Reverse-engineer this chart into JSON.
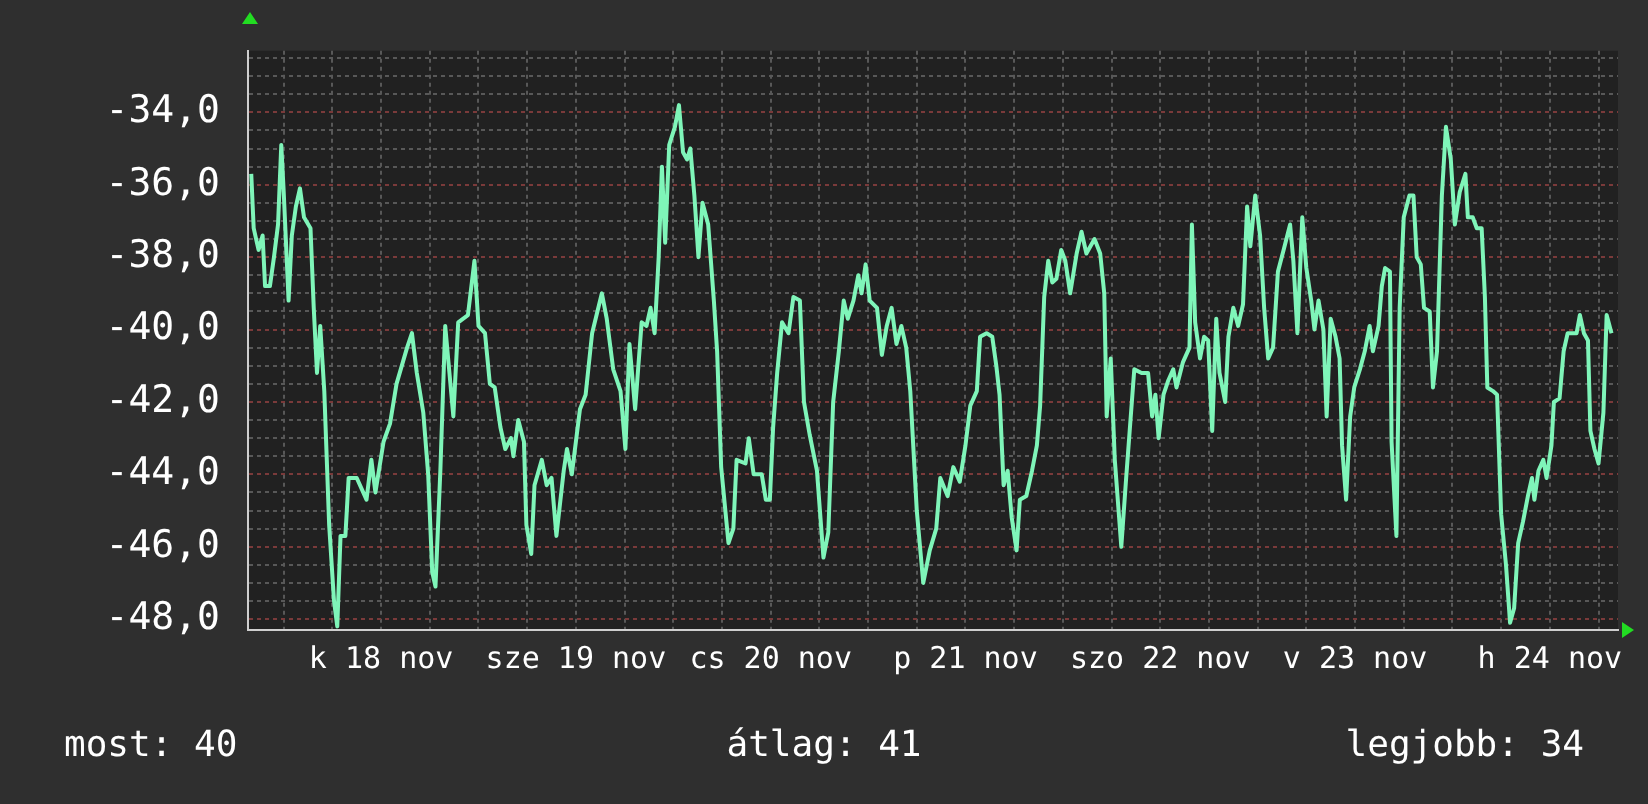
{
  "chart_data": {
    "type": "line",
    "x": [
      "--11-17T20:00",
      "--11-17T20:18",
      "--11-17T20:54",
      "--11-17T21:24",
      "--11-17T21:42",
      "--11-17T22:18",
      "--11-17T22:48",
      "--11-17T23:18",
      "--11-17T23:42",
      "--11-18T00:00",
      "--11-18T00:36",
      "--11-18T01:00",
      "--11-18T01:30",
      "--11-18T02:00",
      "--11-18T02:30",
      "--11-18T03:18",
      "--11-18T03:42",
      "--11-18T04:06",
      "--11-18T04:30",
      "--11-18T05:00",
      "--11-18T05:36",
      "--11-18T06:12",
      "--11-18T06:36",
      "--11-18T07:00",
      "--11-18T07:36",
      "--11-18T08:00",
      "--11-18T09:00",
      "--11-18T10:12",
      "--11-18T10:48",
      "--11-18T11:18",
      "--11-18T12:18",
      "--11-18T13:06",
      "--11-18T13:54",
      "--11-18T15:12",
      "--11-18T15:48",
      "--11-18T16:24",
      "--11-18T17:12",
      "--11-18T17:48",
      "--11-18T18:18",
      "--11-18T18:42",
      "--11-18T19:18",
      "--11-18T19:54",
      "--11-18T20:18",
      "--11-18T20:54",
      "--11-18T21:30",
      "--11-18T22:42",
      "--11-18T23:30",
      "--11-19T00:00",
      "--11-19T00:48",
      "--11-19T01:24",
      "--11-19T02:00",
      "--11-19T02:42",
      "--11-19T03:18",
      "--11-19T04:00",
      "--11-19T04:18",
      "--11-19T04:54",
      "--11-19T05:36",
      "--11-19T05:54",
      "--11-19T06:30",
      "--11-19T06:54",
      "--11-19T07:48",
      "--11-19T08:24",
      "--11-19T09:00",
      "--11-19T09:36",
      "--11-19T10:30",
      "--11-19T10:54",
      "--11-19T11:30",
      "--11-19T12:30",
      "--11-19T13:12",
      "--11-19T14:00",
      "--11-19T15:12",
      "--11-19T15:48",
      "--11-19T16:36",
      "--11-19T17:30",
      "--11-19T18:06",
      "--11-19T18:36",
      "--11-19T19:18",
      "--11-19T20:06",
      "--11-19T20:42",
      "--11-19T21:12",
      "--11-19T21:42",
      "--11-19T22:12",
      "--11-19T22:36",
      "--11-19T23:00",
      "--11-19T23:30",
      "--11-20T00:12",
      "--11-20T00:42",
      "--11-20T01:12",
      "--11-20T01:42",
      "--11-20T02:06",
      "--11-20T02:36",
      "--11-20T03:06",
      "--11-20T03:36",
      "--11-20T04:18",
      "--11-20T05:00",
      "--11-20T05:24",
      "--11-20T05:54",
      "--11-20T06:48",
      "--11-20T07:24",
      "--11-20T07:48",
      "--11-20T08:54",
      "--11-20T09:18",
      "--11-20T09:54",
      "--11-20T10:54",
      "--11-20T11:24",
      "--11-20T11:54",
      "--11-20T12:18",
      "--11-20T12:48",
      "--11-20T13:24",
      "--11-20T14:12",
      "--11-20T14:48",
      "--11-20T15:36",
      "--11-20T16:06",
      "--11-20T16:48",
      "--11-20T17:42",
      "--11-20T18:30",
      "--11-20T19:06",
      "--11-20T19:42",
      "--11-20T20:24",
      "--11-20T21:00",
      "--11-20T21:30",
      "--11-20T22:12",
      "--11-20T22:48",
      "--11-20T23:12",
      "--11-20T23:42",
      "--11-21T00:12",
      "--11-21T01:06",
      "--11-21T01:42",
      "--11-21T02:18",
      "--11-21T02:54",
      "--11-21T03:30",
      "--11-21T04:06",
      "--11-21T04:42",
      "--11-21T05:12",
      "--11-21T06:00",
      "--11-21T06:48",
      "--11-21T07:36",
      "--11-21T08:24",
      "--11-21T08:54",
      "--11-21T09:48",
      "--11-21T10:30",
      "--11-21T11:18",
      "--11-21T12:00",
      "--11-21T12:36",
      "--11-21T13:24",
      "--11-21T13:48",
      "--11-21T14:36",
      "--11-21T15:18",
      "--11-21T15:48",
      "--11-21T16:12",
      "--11-21T16:42",
      "--11-21T17:12",
      "--11-21T17:42",
      "--11-21T18:18",
      "--11-21T18:42",
      "--11-21T19:30",
      "--11-21T20:12",
      "--11-21T20:48",
      "--11-21T21:12",
      "--11-21T21:42",
      "--11-21T22:12",
      "--11-21T22:42",
      "--11-21T23:12",
      "--11-21T23:48",
      "--11-22T00:18",
      "--11-22T00:54",
      "--11-22T01:42",
      "--11-22T02:18",
      "--11-22T02:54",
      "--11-22T03:54",
      "--11-22T04:36",
      "--11-22T05:06",
      "--11-22T05:24",
      "--11-22T05:54",
      "--11-22T06:24",
      "--11-22T07:12",
      "--11-22T07:48",
      "--11-22T08:18",
      "--11-22T08:48",
      "--11-22T09:42",
      "--11-22T10:30",
      "--11-22T11:00",
      "--11-22T11:24",
      "--11-22T11:48",
      "--11-22T12:24",
      "--11-22T13:00",
      "--11-22T13:36",
      "--11-22T14:00",
      "--11-22T14:48",
      "--11-22T15:36",
      "--11-22T15:54",
      "--11-22T16:18",
      "--11-22T16:54",
      "--11-22T17:24",
      "--11-22T17:54",
      "--11-22T18:24",
      "--11-22T18:54",
      "--11-22T19:18",
      "--11-22T20:00",
      "--11-22T20:24",
      "--11-22T21:00",
      "--11-22T21:36",
      "--11-22T22:12",
      "--11-22T22:42",
      "--11-22T23:06",
      "--11-22T23:42",
      "--11-23T00:18",
      "--11-23T00:48",
      "--11-23T01:18",
      "--11-23T01:54",
      "--11-23T02:30",
      "--11-23T03:12",
      "--11-23T04:00",
      "--11-23T04:24",
      "--11-23T04:54",
      "--11-23T05:30",
      "--11-23T06:00",
      "--11-23T06:36",
      "--11-23T07:00",
      "--11-23T07:30",
      "--11-23T08:06",
      "--11-23T08:30",
      "--11-23T09:00",
      "--11-23T09:36",
      "--11-23T10:06",
      "--11-23T10:24",
      "--11-23T10:54",
      "--11-23T11:24",
      "--11-23T11:54",
      "--11-23T12:36",
      "--11-23T13:12",
      "--11-23T13:48",
      "--11-23T14:12",
      "--11-23T14:54",
      "--11-23T15:18",
      "--11-23T15:42",
      "--11-23T16:18",
      "--11-23T16:30",
      "--11-23T17:06",
      "--11-23T17:30",
      "--11-23T18:00",
      "--11-23T18:42",
      "--11-23T19:12",
      "--11-23T19:36",
      "--11-23T20:06",
      "--11-23T20:30",
      "--11-23T21:12",
      "--11-23T21:36",
      "--11-23T22:06",
      "--11-23T22:42",
      "--11-23T23:12",
      "--11-23T23:48",
      "--11-24T00:18",
      "--11-24T00:54",
      "--11-24T01:36",
      "--11-24T01:54",
      "--11-24T02:30",
      "--11-24T03:00",
      "--11-24T03:36",
      "--11-24T04:00",
      "--11-24T04:18",
      "--11-24T05:00",
      "--11-24T05:30",
      "--11-24T06:00",
      "--11-24T06:36",
      "--11-24T07:06",
      "--11-24T07:36",
      "--11-24T08:06",
      "--11-24T08:42",
      "--11-24T09:18",
      "--11-24T09:48",
      "--11-24T10:06",
      "--11-24T10:36",
      "--11-24T11:12",
      "--11-24T11:36",
      "--11-24T12:12",
      "--11-24T12:30",
      "--11-24T13:12",
      "--11-24T13:42",
      "--11-24T14:12",
      "--11-24T15:18",
      "--11-24T15:42",
      "--11-24T16:12",
      "--11-24T16:42",
      "--11-24T17:00",
      "--11-24T17:30",
      "--11-24T18:00",
      "--11-24T18:36",
      "--11-24T19:00",
      "--11-24T19:36"
    ],
    "series": [
      {
        "color": "#7ff5b9",
        "values": [
          -35.7,
          -37.2,
          -37.8,
          -37.4,
          -38.8,
          -38.8,
          -38.0,
          -37.1,
          -34.9,
          -36.2,
          -39.2,
          -37.4,
          -36.6,
          -36.1,
          -36.9,
          -37.2,
          -39.4,
          -41.2,
          -39.9,
          -41.7,
          -45.4,
          -47.5,
          -48.2,
          -45.7,
          -45.7,
          -44.1,
          -44.1,
          -44.7,
          -43.6,
          -44.5,
          -43.1,
          -42.6,
          -41.5,
          -40.5,
          -40.1,
          -41.2,
          -42.3,
          -44.0,
          -46.7,
          -47.1,
          -43.9,
          -39.9,
          -40.9,
          -42.4,
          -39.8,
          -39.6,
          -38.1,
          -39.9,
          -40.1,
          -41.5,
          -41.6,
          -42.7,
          -43.3,
          -43.0,
          -43.5,
          -42.5,
          -43.1,
          -45.4,
          -46.2,
          -44.3,
          -43.6,
          -44.3,
          -44.1,
          -45.7,
          -43.9,
          -43.3,
          -44.0,
          -42.2,
          -41.8,
          -40.1,
          -39.0,
          -39.7,
          -41.1,
          -41.7,
          -43.3,
          -40.4,
          -42.2,
          -39.8,
          -39.9,
          -39.4,
          -40.1,
          -38.0,
          -35.5,
          -37.6,
          -34.9,
          -34.4,
          -33.8,
          -35.1,
          -35.3,
          -35.0,
          -36.3,
          -38.0,
          -36.5,
          -37.1,
          -39.2,
          -40.6,
          -43.8,
          -45.9,
          -45.5,
          -43.6,
          -43.7,
          -43.0,
          -44.0,
          -44.0,
          -44.7,
          -44.7,
          -42.7,
          -41.2,
          -39.8,
          -40.1,
          -39.1,
          -39.2,
          -42.0,
          -42.9,
          -43.9,
          -46.3,
          -45.6,
          -42.0,
          -40.6,
          -39.2,
          -39.7,
          -39.2,
          -38.5,
          -39.0,
          -38.2,
          -39.2,
          -39.4,
          -40.7,
          -39.9,
          -39.4,
          -40.4,
          -39.9,
          -40.5,
          -41.7,
          -45.0,
          -47.0,
          -46.1,
          -45.5,
          -44.1,
          -44.6,
          -43.8,
          -44.2,
          -43.2,
          -42.1,
          -41.7,
          -40.2,
          -40.1,
          -40.2,
          -41.0,
          -41.8,
          -44.3,
          -43.9,
          -45.2,
          -46.1,
          -44.7,
          -44.6,
          -43.9,
          -43.2,
          -42.1,
          -39.1,
          -38.1,
          -38.7,
          -38.6,
          -37.8,
          -38.1,
          -39.0,
          -37.9,
          -37.3,
          -37.9,
          -37.5,
          -37.9,
          -39.0,
          -42.4,
          -40.8,
          -43.6,
          -46.0,
          -44.1,
          -42.6,
          -41.1,
          -41.2,
          -41.2,
          -42.4,
          -41.8,
          -43.0,
          -41.8,
          -41.4,
          -41.1,
          -41.6,
          -40.9,
          -40.5,
          -37.1,
          -39.8,
          -40.8,
          -40.2,
          -40.3,
          -42.8,
          -39.7,
          -41.2,
          -42.0,
          -40.2,
          -39.4,
          -39.9,
          -39.3,
          -36.6,
          -37.7,
          -36.3,
          -37.4,
          -39.4,
          -40.8,
          -40.5,
          -38.4,
          -37.8,
          -37.1,
          -38.1,
          -40.1,
          -36.9,
          -38.3,
          -39.2,
          -40.0,
          -39.2,
          -40.0,
          -42.4,
          -39.7,
          -40.2,
          -40.8,
          -43.2,
          -44.7,
          -42.4,
          -41.6,
          -41.1,
          -40.6,
          -39.9,
          -40.6,
          -39.9,
          -38.8,
          -38.3,
          -38.4,
          -43.1,
          -45.7,
          -39.4,
          -36.9,
          -36.3,
          -36.3,
          -38.0,
          -38.2,
          -39.4,
          -39.5,
          -41.6,
          -40.6,
          -36.3,
          -34.4,
          -35.3,
          -37.1,
          -36.2,
          -35.7,
          -36.9,
          -36.9,
          -37.2,
          -37.2,
          -39.1,
          -41.6,
          -41.7,
          -41.8,
          -45.1,
          -46.5,
          -48.1,
          -47.7,
          -45.9,
          -45.3,
          -44.6,
          -44.1,
          -44.7,
          -43.9,
          -43.6,
          -44.1,
          -43.2,
          -42.0,
          -41.9,
          -40.6,
          -40.1,
          -40.1,
          -39.6,
          -40.1,
          -40.3,
          -42.8,
          -43.3,
          -43.7,
          -42.3,
          -39.6,
          -40.1
        ]
      }
    ],
    "xlim": [
      "--11-17T19:36",
      "--11-24T20:24"
    ],
    "xticks": [
      {
        "value": "--11-18T00:00",
        "label": null
      },
      {
        "value": "--11-18T06:00",
        "label": null
      },
      {
        "value": "--11-18T12:00",
        "label": "k 18 nov"
      },
      {
        "value": "--11-18T18:00",
        "label": null
      },
      {
        "value": "--11-19T00:00",
        "label": null
      },
      {
        "value": "--11-19T06:00",
        "label": null
      },
      {
        "value": "--11-19T12:00",
        "label": "sze 19 nov"
      },
      {
        "value": "--11-19T18:00",
        "label": null
      },
      {
        "value": "--11-20T00:00",
        "label": null
      },
      {
        "value": "--11-20T06:00",
        "label": null
      },
      {
        "value": "--11-20T12:00",
        "label": "cs 20 nov"
      },
      {
        "value": "--11-20T18:00",
        "label": null
      },
      {
        "value": "--11-21T00:00",
        "label": null
      },
      {
        "value": "--11-21T06:00",
        "label": null
      },
      {
        "value": "--11-21T12:00",
        "label": "p 21 nov"
      },
      {
        "value": "--11-21T18:00",
        "label": null
      },
      {
        "value": "--11-22T00:00",
        "label": null
      },
      {
        "value": "--11-22T06:00",
        "label": null
      },
      {
        "value": "--11-22T12:00",
        "label": "szo 22 nov"
      },
      {
        "value": "--11-22T18:00",
        "label": null
      },
      {
        "value": "--11-23T00:00",
        "label": null
      },
      {
        "value": "--11-23T06:00",
        "label": null
      },
      {
        "value": "--11-23T12:00",
        "label": "v 23 nov"
      },
      {
        "value": "--11-23T18:00",
        "label": null
      },
      {
        "value": "--11-24T00:00",
        "label": null
      },
      {
        "value": "--11-24T06:00",
        "label": null
      },
      {
        "value": "--11-24T12:00",
        "label": "h 24 nov"
      },
      {
        "value": "--11-24T18:00",
        "label": null
      }
    ],
    "ylim": [
      -48.3,
      -32.3
    ],
    "yticks": [
      {
        "value": -48,
        "label": "-48,0"
      },
      {
        "value": -47.5,
        "label": null
      },
      {
        "value": -47,
        "label": null
      },
      {
        "value": -46.5,
        "label": null
      },
      {
        "value": -46,
        "label": "-46,0"
      },
      {
        "value": -45.5,
        "label": null
      },
      {
        "value": -45,
        "label": null
      },
      {
        "value": -44.5,
        "label": null
      },
      {
        "value": -44,
        "label": "-44,0"
      },
      {
        "value": -43.5,
        "label": null
      },
      {
        "value": -43,
        "label": null
      },
      {
        "value": -42.5,
        "label": null
      },
      {
        "value": -42,
        "label": "-42,0"
      },
      {
        "value": -41.5,
        "label": null
      },
      {
        "value": -41,
        "label": null
      },
      {
        "value": -40.5,
        "label": null
      },
      {
        "value": -40,
        "label": "-40,0"
      },
      {
        "value": -39.5,
        "label": null
      },
      {
        "value": -39,
        "label": null
      },
      {
        "value": -38.5,
        "label": null
      },
      {
        "value": -38,
        "label": "-38,0"
      },
      {
        "value": -37.5,
        "label": null
      },
      {
        "value": -37,
        "label": null
      },
      {
        "value": -36.5,
        "label": null
      },
      {
        "value": -36,
        "label": "-36,0"
      },
      {
        "value": -35.5,
        "label": null
      },
      {
        "value": -35,
        "label": null
      },
      {
        "value": -34.5,
        "label": null
      },
      {
        "value": -34,
        "label": "-34,0"
      },
      {
        "value": -33.5,
        "label": null
      },
      {
        "value": -33,
        "label": null
      },
      {
        "value": -32.5,
        "label": null
      }
    ],
    "grid": true,
    "legend": false,
    "marker": "none",
    "line_style": "solid",
    "annotations": [
      "most: 40",
      "átlag: 41",
      "legjobb: 34"
    ]
  }
}
